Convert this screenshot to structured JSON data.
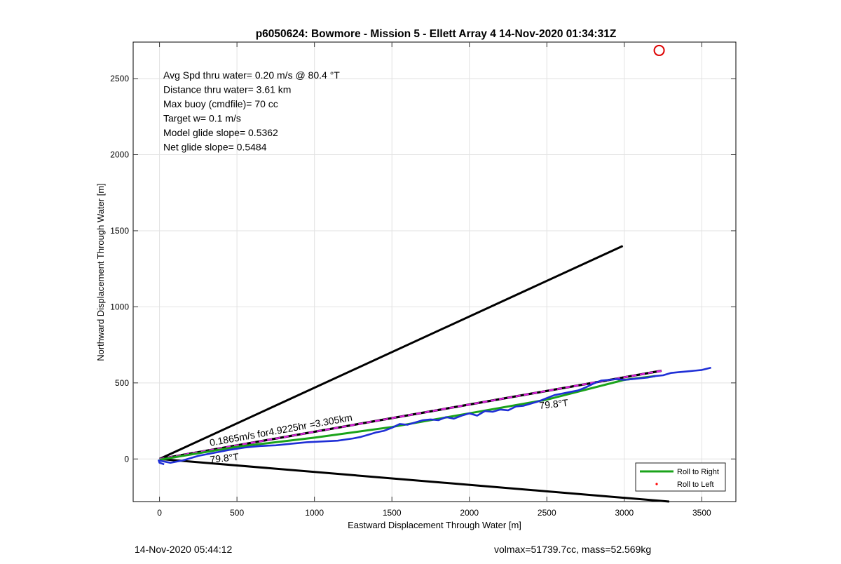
{
  "chart_data": {
    "type": "line",
    "title": "p6050624: Bowmore - Mission 5 - Ellett Array 4 14-Nov-2020 01:34:31Z",
    "xlabel": "Eastward Displacement Through Water [m]",
    "ylabel": "Northward Displacement Through Water [m]",
    "xlim": [
      -170,
      3720
    ],
    "ylim": [
      -280,
      2740
    ],
    "xticks": [
      0,
      500,
      1000,
      1500,
      2000,
      2500,
      3000,
      3500
    ],
    "yticks": [
      0,
      500,
      1000,
      1500,
      2000,
      2500
    ],
    "grid": true,
    "info_lines": [
      "Avg Spd thru water=  0.20 m/s @  80.4 °T",
      "Distance thru water=  3.61 km",
      "Max buoy (cmdfile)= 70 cc",
      "Target w= 0.1 m/s",
      "Model glide slope= 0.5362",
      "Net glide slope= 0.5484"
    ],
    "annotations": {
      "speed_label": "0.1865m/s for4.9225hr =3.305km",
      "heading_label_1": "79.8°T",
      "heading_label_2": "79.8°T"
    },
    "legend": {
      "placement": "bottom-right",
      "entries": [
        "Roll to Right",
        "Roll to Left"
      ]
    },
    "series": [
      {
        "name": "Roll to Right",
        "color": "#1aa31a",
        "x": [
          0,
          500,
          1000,
          1500,
          2000,
          2500,
          3000,
          3200
        ],
        "y": [
          -5,
          80,
          140,
          210,
          300,
          390,
          520,
          545
        ]
      },
      {
        "name": "Roll to Left",
        "color": "#ff0000",
        "x": [],
        "y": []
      }
    ],
    "track": {
      "color": "#1f2fd6",
      "x": [
        30,
        0,
        -5,
        20,
        70,
        150,
        250,
        350,
        450,
        550,
        650,
        750,
        850,
        950,
        1050,
        1150,
        1250,
        1300,
        1350,
        1400,
        1450,
        1500,
        1550,
        1600,
        1650,
        1700,
        1750,
        1800,
        1850,
        1900,
        1950,
        2000,
        2050,
        2100,
        2150,
        2200,
        2250,
        2300,
        2350,
        2400,
        2450,
        2500,
        2550,
        2600,
        2650,
        2700,
        2750,
        2800,
        2850,
        2900,
        2950,
        3000,
        3050,
        3100,
        3150,
        3200,
        3250,
        3300,
        3350,
        3400,
        3450,
        3500,
        3560
      ],
      "y": [
        -35,
        -25,
        -10,
        -15,
        -25,
        -10,
        20,
        40,
        60,
        75,
        85,
        90,
        100,
        110,
        115,
        120,
        135,
        145,
        160,
        175,
        185,
        205,
        230,
        225,
        240,
        255,
        260,
        255,
        275,
        265,
        285,
        300,
        285,
        315,
        310,
        325,
        320,
        345,
        350,
        365,
        380,
        400,
        420,
        430,
        440,
        450,
        470,
        495,
        515,
        520,
        525,
        520,
        525,
        530,
        535,
        545,
        550,
        565,
        570,
        575,
        580,
        585,
        600
      ]
    },
    "reference_lines": [
      {
        "style": "solid",
        "color": "#000000",
        "x": [
          0,
          2990
        ],
        "y": [
          0,
          1400
        ]
      },
      {
        "style": "solid",
        "color": "#000000",
        "x": [
          0,
          3290
        ],
        "y": [
          0,
          -280
        ]
      },
      {
        "style": "dashed",
        "color": "#000000",
        "dash_color": "#e020e0",
        "x": [
          0,
          3240
        ],
        "y": [
          0,
          580
        ]
      }
    ],
    "marker": {
      "x": 3225,
      "y": 2685,
      "color": "#dd0000"
    }
  },
  "footer": {
    "left": "14-Nov-2020 05:44:12",
    "right": "volmax=51739.7cc, mass=52.569kg"
  }
}
